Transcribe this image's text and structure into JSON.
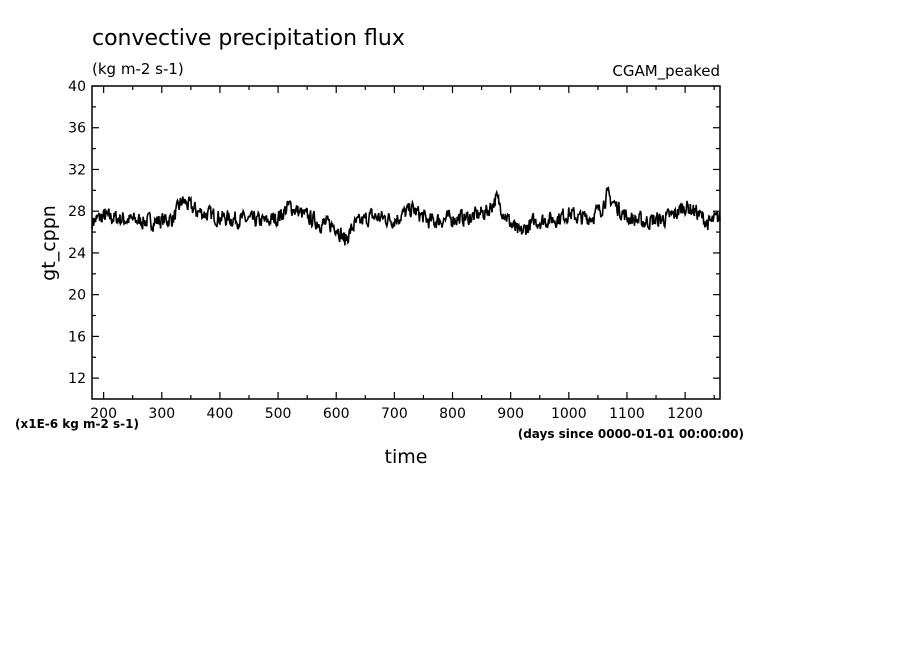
{
  "chart_data": {
    "type": "line",
    "title": "convective precipitation flux",
    "subtitle": "(kg m-2 s-1)",
    "experiment": "CGAM_peaked",
    "xlabel": "time",
    "x_units": "(days since 0000-01-01 00:00:00)",
    "ylabel": "gt_cppn",
    "y_scale_note": "(x1E-6 kg m-2 s-1)",
    "xlim": [
      180,
      1260
    ],
    "ylim": [
      10,
      40
    ],
    "grid": false,
    "legend": "none",
    "x_ticks": [
      "200",
      "300",
      "400",
      "500",
      "600",
      "700",
      "800",
      "900",
      "1000",
      "1100",
      "1200"
    ],
    "y_ticks": [
      "12",
      "16",
      "20",
      "24",
      "28",
      "32",
      "36",
      "40"
    ],
    "line_color": "#000000",
    "x": [
      180,
      200,
      240,
      280,
      300,
      320,
      335,
      360,
      400,
      440,
      480,
      500,
      520,
      545,
      575,
      600,
      615,
      630,
      660,
      700,
      730,
      760,
      800,
      830,
      860,
      875,
      900,
      915,
      940,
      980,
      1000,
      1020,
      1040,
      1055,
      1065,
      1100,
      1130,
      1160,
      1180,
      1200,
      1220,
      1240,
      1260
    ],
    "y": [
      27.0,
      27.5,
      27.2,
      27.0,
      27.1,
      27.3,
      29.0,
      28.0,
      27.4,
      27.2,
      27.0,
      27.4,
      28.5,
      27.6,
      26.8,
      26.6,
      25.2,
      26.6,
      27.5,
      27.2,
      28.2,
      27.0,
      27.3,
      27.4,
      28.0,
      29.2,
      26.8,
      25.8,
      27.0,
      27.3,
      27.8,
      27.3,
      27.5,
      28.2,
      29.5,
      27.4,
      27.0,
      27.2,
      27.6,
      28.5,
      27.9,
      26.8,
      27.4
    ]
  }
}
